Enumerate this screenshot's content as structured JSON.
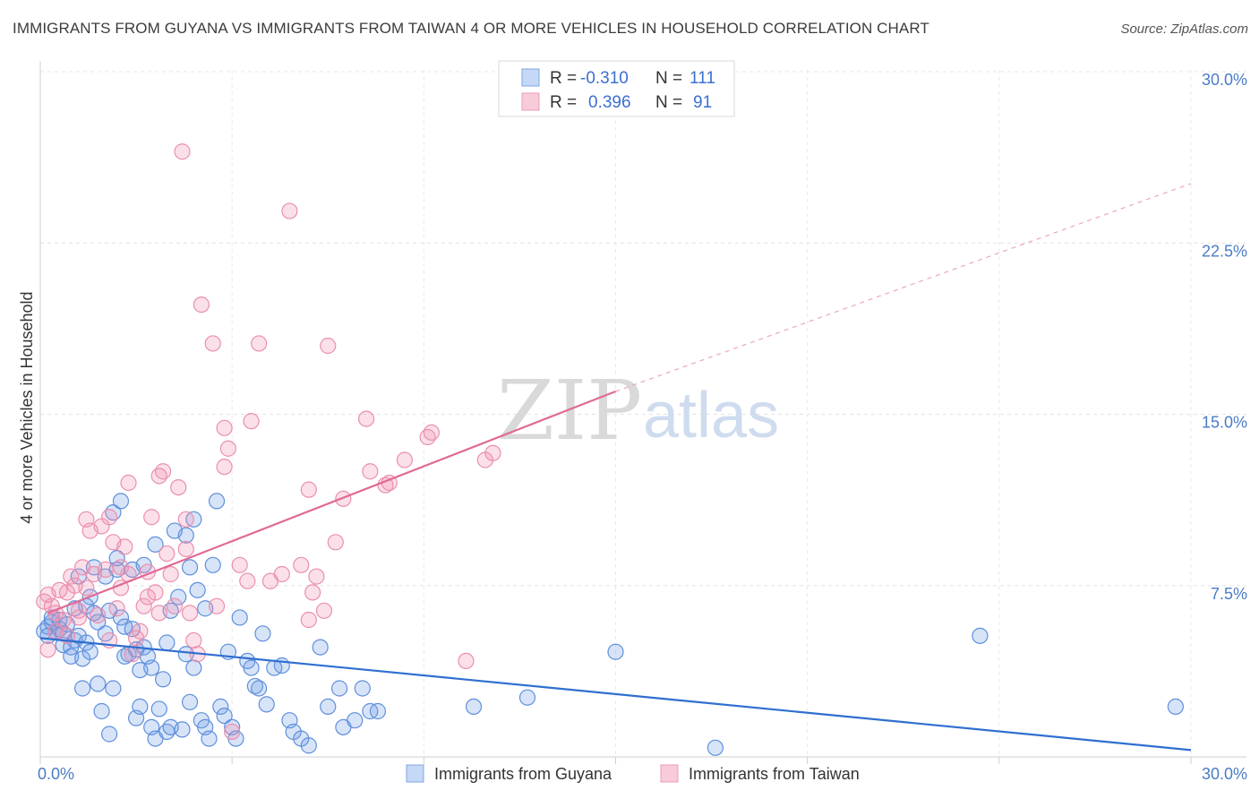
{
  "title": "IMMIGRANTS FROM GUYANA VS IMMIGRANTS FROM TAIWAN 4 OR MORE VEHICLES IN HOUSEHOLD CORRELATION CHART",
  "source": "Source: ZipAtlas.com",
  "watermark": {
    "left": "ZIP",
    "right": "atlas"
  },
  "legend": {
    "rows": [
      {
        "r_label": "R =",
        "r_value": "-0.310",
        "n_label": "N =",
        "n_value": "111"
      },
      {
        "r_label": "R =",
        "r_value": "0.396",
        "n_label": "N =",
        "n_value": "91"
      }
    ]
  },
  "chart_data": {
    "type": "scatter",
    "xlabel": "",
    "ylabel": "4 or more Vehicles in Household",
    "xlim": [
      0,
      30
    ],
    "ylim": [
      0,
      30
    ],
    "x_ticks": [
      "0.0%",
      "30.0%"
    ],
    "y_ticks": [
      "7.5%",
      "15.0%",
      "22.5%",
      "30.0%"
    ],
    "grid": true,
    "legend_position": "top-center",
    "series": [
      {
        "name": "Immigrants from Guyana",
        "color": "#6e9ee6",
        "trend": {
          "x": [
            0,
            30
          ],
          "y": [
            5.2,
            0.3
          ]
        },
        "points": [
          [
            0.1,
            5.5
          ],
          [
            0.2,
            5.7
          ],
          [
            0.2,
            5.3
          ],
          [
            0.3,
            5.9
          ],
          [
            0.3,
            6.1
          ],
          [
            0.4,
            5.5
          ],
          [
            0.5,
            5.6
          ],
          [
            0.5,
            6.0
          ],
          [
            0.6,
            5.4
          ],
          [
            0.6,
            4.9
          ],
          [
            0.7,
            5.8
          ],
          [
            0.8,
            4.8
          ],
          [
            0.8,
            4.4
          ],
          [
            0.9,
            5.1
          ],
          [
            0.9,
            6.5
          ],
          [
            1.0,
            7.9
          ],
          [
            1.0,
            5.3
          ],
          [
            1.1,
            4.3
          ],
          [
            1.1,
            3.0
          ],
          [
            1.2,
            5.0
          ],
          [
            1.2,
            6.6
          ],
          [
            1.3,
            7.0
          ],
          [
            1.3,
            4.6
          ],
          [
            1.4,
            8.3
          ],
          [
            1.4,
            6.3
          ],
          [
            1.5,
            5.9
          ],
          [
            1.5,
            3.2
          ],
          [
            1.6,
            2.0
          ],
          [
            1.7,
            5.4
          ],
          [
            1.7,
            7.9
          ],
          [
            1.8,
            6.4
          ],
          [
            1.8,
            1.0
          ],
          [
            1.9,
            10.7
          ],
          [
            1.9,
            3.0
          ],
          [
            2.0,
            8.2
          ],
          [
            2.0,
            8.7
          ],
          [
            2.1,
            11.2
          ],
          [
            2.1,
            6.1
          ],
          [
            2.2,
            5.7
          ],
          [
            2.2,
            4.4
          ],
          [
            2.3,
            4.5
          ],
          [
            2.4,
            8.2
          ],
          [
            2.4,
            5.6
          ],
          [
            2.5,
            1.7
          ],
          [
            2.5,
            4.7
          ],
          [
            2.6,
            2.2
          ],
          [
            2.6,
            3.8
          ],
          [
            2.7,
            8.4
          ],
          [
            2.7,
            4.8
          ],
          [
            2.8,
            4.4
          ],
          [
            2.9,
            1.3
          ],
          [
            2.9,
            3.9
          ],
          [
            3.0,
            9.3
          ],
          [
            3.0,
            0.8
          ],
          [
            3.1,
            2.1
          ],
          [
            3.2,
            3.4
          ],
          [
            3.3,
            5.0
          ],
          [
            3.3,
            1.1
          ],
          [
            3.4,
            6.4
          ],
          [
            3.4,
            1.3
          ],
          [
            3.5,
            9.9
          ],
          [
            3.6,
            7.0
          ],
          [
            3.7,
            1.2
          ],
          [
            3.8,
            9.7
          ],
          [
            3.8,
            4.5
          ],
          [
            3.9,
            2.4
          ],
          [
            3.9,
            8.3
          ],
          [
            4.0,
            10.4
          ],
          [
            4.0,
            3.9
          ],
          [
            4.1,
            7.3
          ],
          [
            4.2,
            1.6
          ],
          [
            4.3,
            1.3
          ],
          [
            4.3,
            6.5
          ],
          [
            4.4,
            0.8
          ],
          [
            4.5,
            8.4
          ],
          [
            4.6,
            11.2
          ],
          [
            4.7,
            2.2
          ],
          [
            4.8,
            1.8
          ],
          [
            4.9,
            4.6
          ],
          [
            5.0,
            1.3
          ],
          [
            5.1,
            0.8
          ],
          [
            5.2,
            6.1
          ],
          [
            5.4,
            4.2
          ],
          [
            5.5,
            3.9
          ],
          [
            5.6,
            3.1
          ],
          [
            5.7,
            3.0
          ],
          [
            5.8,
            5.4
          ],
          [
            5.9,
            2.3
          ],
          [
            6.1,
            3.9
          ],
          [
            6.3,
            4.0
          ],
          [
            6.5,
            1.6
          ],
          [
            6.6,
            1.1
          ],
          [
            6.8,
            0.8
          ],
          [
            7.0,
            0.5
          ],
          [
            7.3,
            4.8
          ],
          [
            7.5,
            2.2
          ],
          [
            7.8,
            3.0
          ],
          [
            7.9,
            1.3
          ],
          [
            8.2,
            1.6
          ],
          [
            8.4,
            3.0
          ],
          [
            8.6,
            2.0
          ],
          [
            8.8,
            2.0
          ],
          [
            11.3,
            2.2
          ],
          [
            12.7,
            2.6
          ],
          [
            15.0,
            4.6
          ],
          [
            17.6,
            0.4
          ],
          [
            24.5,
            5.3
          ],
          [
            29.6,
            2.2
          ]
        ]
      },
      {
        "name": "Immigrants from Taiwan",
        "color": "#ef8fb0",
        "trend": {
          "x": [
            0.2,
            15.0
          ],
          "y": [
            6.3,
            16.0
          ],
          "dashed_x": [
            15.0,
            30.0
          ],
          "dashed_y": [
            16.0,
            25.1
          ]
        },
        "points": [
          [
            0.1,
            6.8
          ],
          [
            0.2,
            7.1
          ],
          [
            0.2,
            4.7
          ],
          [
            0.3,
            6.6
          ],
          [
            0.4,
            6.3
          ],
          [
            0.4,
            5.5
          ],
          [
            0.5,
            7.3
          ],
          [
            0.6,
            6.0
          ],
          [
            0.7,
            7.2
          ],
          [
            0.7,
            5.3
          ],
          [
            0.8,
            7.9
          ],
          [
            0.9,
            7.5
          ],
          [
            1.0,
            6.4
          ],
          [
            1.0,
            6.1
          ],
          [
            1.1,
            8.3
          ],
          [
            1.2,
            7.4
          ],
          [
            1.2,
            10.4
          ],
          [
            1.3,
            9.9
          ],
          [
            1.4,
            8.0
          ],
          [
            1.5,
            6.2
          ],
          [
            1.6,
            10.1
          ],
          [
            1.7,
            8.2
          ],
          [
            1.8,
            5.1
          ],
          [
            1.8,
            10.5
          ],
          [
            1.9,
            9.4
          ],
          [
            2.0,
            6.5
          ],
          [
            2.1,
            8.3
          ],
          [
            2.1,
            7.4
          ],
          [
            2.2,
            9.2
          ],
          [
            2.3,
            8.0
          ],
          [
            2.3,
            12.0
          ],
          [
            2.4,
            4.5
          ],
          [
            2.5,
            5.2
          ],
          [
            2.6,
            5.5
          ],
          [
            2.7,
            6.6
          ],
          [
            2.8,
            8.1
          ],
          [
            2.8,
            7.0
          ],
          [
            2.9,
            10.5
          ],
          [
            3.0,
            7.2
          ],
          [
            3.1,
            6.3
          ],
          [
            3.1,
            12.3
          ],
          [
            3.2,
            12.5
          ],
          [
            3.3,
            8.9
          ],
          [
            3.4,
            8.0
          ],
          [
            3.5,
            6.6
          ],
          [
            3.6,
            11.8
          ],
          [
            3.7,
            26.5
          ],
          [
            3.8,
            9.1
          ],
          [
            3.8,
            10.4
          ],
          [
            3.9,
            6.3
          ],
          [
            4.0,
            5.1
          ],
          [
            4.1,
            4.5
          ],
          [
            4.2,
            19.8
          ],
          [
            4.5,
            18.1
          ],
          [
            4.6,
            6.6
          ],
          [
            4.8,
            12.7
          ],
          [
            4.8,
            14.4
          ],
          [
            4.9,
            13.5
          ],
          [
            5.0,
            1.1
          ],
          [
            5.2,
            8.4
          ],
          [
            5.4,
            7.7
          ],
          [
            5.5,
            14.7
          ],
          [
            5.7,
            18.1
          ],
          [
            6.0,
            7.7
          ],
          [
            6.3,
            8.0
          ],
          [
            6.5,
            23.9
          ],
          [
            6.8,
            8.4
          ],
          [
            7.0,
            11.7
          ],
          [
            7.0,
            6.0
          ],
          [
            7.1,
            7.2
          ],
          [
            7.2,
            7.9
          ],
          [
            7.4,
            6.4
          ],
          [
            7.5,
            18.0
          ],
          [
            7.7,
            9.4
          ],
          [
            7.9,
            11.3
          ],
          [
            8.5,
            14.8
          ],
          [
            8.6,
            12.5
          ],
          [
            9.0,
            11.9
          ],
          [
            9.1,
            12.0
          ],
          [
            9.5,
            13.0
          ],
          [
            10.1,
            14.0
          ],
          [
            10.2,
            14.2
          ],
          [
            11.1,
            4.2
          ],
          [
            11.6,
            13.0
          ],
          [
            11.8,
            13.3
          ]
        ]
      }
    ]
  }
}
